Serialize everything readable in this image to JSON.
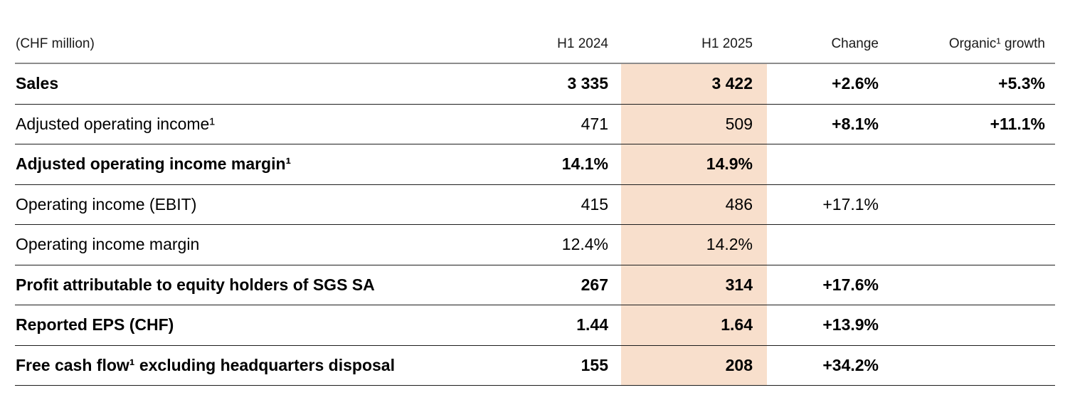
{
  "table": {
    "unit_label": "(CHF million)",
    "highlight_color": "#f8dfcc",
    "columns": {
      "h1_2024": "H1 2024",
      "h1_2025": "H1 2025",
      "change": "Change",
      "organic": "Organic¹ growth"
    },
    "rows": [
      {
        "label": "Sales",
        "h1_2024": "3 335",
        "h1_2025": "3 422",
        "change": "+2.6%",
        "organic": "+5.3%",
        "emphasis": "bold"
      },
      {
        "label": "Adjusted operating income¹",
        "h1_2024": "471",
        "h1_2025": "509",
        "change": "+8.1%",
        "organic": "+11.1%",
        "emphasis": "change-bold"
      },
      {
        "label": "Adjusted operating income margin¹",
        "h1_2024": "14.1%",
        "h1_2025": "14.9%",
        "change": "",
        "organic": "",
        "emphasis": "bold"
      },
      {
        "label": "Operating income (EBIT)",
        "h1_2024": "415",
        "h1_2025": "486",
        "change": "+17.1%",
        "organic": "",
        "emphasis": ""
      },
      {
        "label": "Operating income margin",
        "h1_2024": "12.4%",
        "h1_2025": "14.2%",
        "change": "",
        "organic": "",
        "emphasis": ""
      },
      {
        "label": "Profit attributable to equity holders of SGS SA",
        "h1_2024": "267",
        "h1_2025": "314",
        "change": "+17.6%",
        "organic": "",
        "emphasis": "bold"
      },
      {
        "label": "Reported EPS (CHF)",
        "h1_2024": "1.44",
        "h1_2025": "1.64",
        "change": "+13.9%",
        "organic": "",
        "emphasis": "bold"
      },
      {
        "label": "Free cash flow¹ excluding headquarters disposal",
        "h1_2024": "155",
        "h1_2025": "208",
        "change": "+34.2%",
        "organic": "",
        "emphasis": "bold"
      }
    ]
  }
}
